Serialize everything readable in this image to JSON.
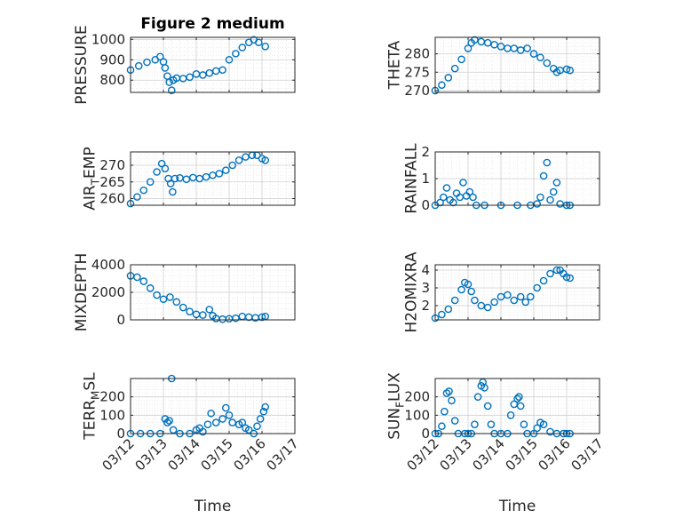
{
  "figure": {
    "title": "Figure 2 medium",
    "marker_color": "#0072BD",
    "axis_color": "#262626",
    "grid_color": "#DFDFDF"
  },
  "chart_data": [
    {
      "type": "scatter",
      "key": "pressure",
      "title": "Figure 2 medium",
      "ylabel_parts": [
        [
          "PRESSURE",
          ""
        ]
      ],
      "xlabel": "",
      "ylim": [
        740,
        1010
      ],
      "yticks": [
        800,
        900,
        1000
      ],
      "xlim": [
        0,
        5
      ],
      "xticks": [
        0,
        1,
        2,
        3,
        4,
        5
      ],
      "xticklabels": [],
      "series": [
        {
          "name": "PRESSURE",
          "points": [
            [
              0,
              850
            ],
            [
              0.25,
              870
            ],
            [
              0.5,
              888
            ],
            [
              0.75,
              900
            ],
            [
              0.9,
              915
            ],
            [
              1.0,
              890
            ],
            [
              1.05,
              860
            ],
            [
              1.12,
              820
            ],
            [
              1.18,
              790
            ],
            [
              1.25,
              750
            ],
            [
              1.3,
              800
            ],
            [
              1.4,
              810
            ],
            [
              1.6,
              808
            ],
            [
              1.8,
              815
            ],
            [
              2.0,
              830
            ],
            [
              2.2,
              825
            ],
            [
              2.4,
              835
            ],
            [
              2.6,
              845
            ],
            [
              2.8,
              850
            ],
            [
              3.0,
              900
            ],
            [
              3.2,
              930
            ],
            [
              3.4,
              960
            ],
            [
              3.6,
              985
            ],
            [
              3.75,
              998
            ],
            [
              3.9,
              985
            ],
            [
              4.1,
              965
            ]
          ]
        }
      ]
    },
    {
      "type": "scatter",
      "key": "theta",
      "ylabel_parts": [
        [
          "THETA",
          ""
        ]
      ],
      "xlabel": "",
      "ylim": [
        269.5,
        284.5
      ],
      "yticks": [
        270,
        275,
        280
      ],
      "xlim": [
        0,
        5
      ],
      "xticks": [
        0,
        1,
        2,
        3,
        4,
        5
      ],
      "xticklabels": [],
      "series": [
        {
          "name": "THETA",
          "points": [
            [
              0,
              270
            ],
            [
              0.2,
              271.5
            ],
            [
              0.4,
              273.5
            ],
            [
              0.6,
              276
            ],
            [
              0.8,
              278.5
            ],
            [
              1.0,
              281.5
            ],
            [
              1.1,
              283
            ],
            [
              1.2,
              283.8
            ],
            [
              1.4,
              283.3
            ],
            [
              1.6,
              283
            ],
            [
              1.8,
              282.5
            ],
            [
              2.0,
              282
            ],
            [
              2.2,
              281.5
            ],
            [
              2.4,
              281.5
            ],
            [
              2.6,
              281
            ],
            [
              2.8,
              281.5
            ],
            [
              3.0,
              280
            ],
            [
              3.2,
              279
            ],
            [
              3.4,
              277.5
            ],
            [
              3.6,
              276
            ],
            [
              3.7,
              275
            ],
            [
              3.8,
              275.5
            ],
            [
              4.0,
              275.8
            ],
            [
              4.1,
              275.5
            ]
          ]
        }
      ]
    },
    {
      "type": "scatter",
      "key": "airtemp",
      "ylabel_parts": [
        [
          "AIR",
          ""
        ],
        [
          "T",
          "sub"
        ],
        [
          "EMP",
          ""
        ]
      ],
      "xlabel": "",
      "ylim": [
        258,
        274
      ],
      "yticks": [
        260,
        265,
        270
      ],
      "xlim": [
        0,
        5
      ],
      "xticks": [
        0,
        1,
        2,
        3,
        4,
        5
      ],
      "xticklabels": [],
      "series": [
        {
          "name": "AIR_TEMP",
          "points": [
            [
              0,
              258.5
            ],
            [
              0.2,
              260.5
            ],
            [
              0.4,
              262.5
            ],
            [
              0.6,
              265
            ],
            [
              0.8,
              268
            ],
            [
              0.95,
              270.5
            ],
            [
              1.05,
              269
            ],
            [
              1.15,
              266
            ],
            [
              1.22,
              264.5
            ],
            [
              1.28,
              262
            ],
            [
              1.35,
              266
            ],
            [
              1.5,
              266.2
            ],
            [
              1.7,
              265.8
            ],
            [
              1.9,
              266.3
            ],
            [
              2.1,
              266
            ],
            [
              2.3,
              266.5
            ],
            [
              2.5,
              267
            ],
            [
              2.7,
              267.5
            ],
            [
              2.9,
              268.5
            ],
            [
              3.1,
              270
            ],
            [
              3.3,
              271.5
            ],
            [
              3.5,
              272.5
            ],
            [
              3.7,
              273
            ],
            [
              3.85,
              273
            ],
            [
              4.0,
              272
            ],
            [
              4.1,
              271.5
            ]
          ]
        }
      ]
    },
    {
      "type": "scatter",
      "key": "rainfall",
      "ylabel_parts": [
        [
          "RAINFALL",
          ""
        ]
      ],
      "xlabel": "",
      "ylim": [
        0,
        2
      ],
      "yticks": [
        0,
        1,
        2
      ],
      "xlim": [
        0,
        5
      ],
      "xticks": [
        0,
        1,
        2,
        3,
        4,
        5
      ],
      "xticklabels": [],
      "series": [
        {
          "name": "RAINFALL",
          "points": [
            [
              0,
              0
            ],
            [
              0.15,
              0.1
            ],
            [
              0.25,
              0.3
            ],
            [
              0.35,
              0.65
            ],
            [
              0.45,
              0.2
            ],
            [
              0.55,
              0.1
            ],
            [
              0.65,
              0.45
            ],
            [
              0.75,
              0.3
            ],
            [
              0.85,
              0.85
            ],
            [
              0.95,
              0.35
            ],
            [
              1.05,
              0.5
            ],
            [
              1.15,
              0.3
            ],
            [
              1.25,
              0
            ],
            [
              1.5,
              0
            ],
            [
              2.0,
              0
            ],
            [
              2.5,
              0
            ],
            [
              2.9,
              0
            ],
            [
              3.1,
              0.05
            ],
            [
              3.2,
              0.3
            ],
            [
              3.3,
              1.1
            ],
            [
              3.4,
              1.6
            ],
            [
              3.5,
              0.2
            ],
            [
              3.6,
              0.5
            ],
            [
              3.7,
              0.85
            ],
            [
              3.8,
              0.05
            ],
            [
              4.0,
              0
            ],
            [
              4.1,
              0
            ]
          ]
        }
      ]
    },
    {
      "type": "scatter",
      "key": "mixdepth",
      "ylabel_parts": [
        [
          "MIXDEPTH",
          ""
        ]
      ],
      "xlabel": "",
      "ylim": [
        0,
        4000
      ],
      "yticks": [
        0,
        2000,
        4000
      ],
      "xlim": [
        0,
        5
      ],
      "xticks": [
        0,
        1,
        2,
        3,
        4,
        5
      ],
      "xticklabels": [],
      "series": [
        {
          "name": "MIXDEPTH",
          "points": [
            [
              0,
              3200
            ],
            [
              0.2,
              3100
            ],
            [
              0.4,
              2800
            ],
            [
              0.6,
              2300
            ],
            [
              0.8,
              1800
            ],
            [
              1.0,
              1500
            ],
            [
              1.2,
              1650
            ],
            [
              1.4,
              1300
            ],
            [
              1.6,
              900
            ],
            [
              1.8,
              600
            ],
            [
              2.0,
              400
            ],
            [
              2.2,
              350
            ],
            [
              2.4,
              750
            ],
            [
              2.5,
              300
            ],
            [
              2.6,
              100
            ],
            [
              2.8,
              50
            ],
            [
              3.0,
              80
            ],
            [
              3.2,
              120
            ],
            [
              3.4,
              250
            ],
            [
              3.6,
              200
            ],
            [
              3.8,
              150
            ],
            [
              4.0,
              200
            ],
            [
              4.1,
              250
            ]
          ]
        }
      ]
    },
    {
      "type": "scatter",
      "key": "h2omixra",
      "ylabel_parts": [
        [
          "H2OMIXRA",
          ""
        ]
      ],
      "xlabel": "",
      "ylim": [
        1.2,
        4.3
      ],
      "yticks": [
        2,
        3,
        4
      ],
      "xlim": [
        0,
        5
      ],
      "xticks": [
        0,
        1,
        2,
        3,
        4,
        5
      ],
      "xticklabels": [],
      "series": [
        {
          "name": "H2OMIXRA",
          "points": [
            [
              0,
              1.3
            ],
            [
              0.2,
              1.5
            ],
            [
              0.4,
              1.8
            ],
            [
              0.6,
              2.3
            ],
            [
              0.8,
              2.9
            ],
            [
              0.9,
              3.3
            ],
            [
              1.0,
              3.2
            ],
            [
              1.1,
              2.8
            ],
            [
              1.2,
              2.3
            ],
            [
              1.4,
              2.0
            ],
            [
              1.6,
              1.9
            ],
            [
              1.8,
              2.2
            ],
            [
              2.0,
              2.5
            ],
            [
              2.2,
              2.6
            ],
            [
              2.4,
              2.3
            ],
            [
              2.6,
              2.5
            ],
            [
              2.75,
              2.2
            ],
            [
              2.9,
              2.5
            ],
            [
              3.1,
              3.0
            ],
            [
              3.3,
              3.4
            ],
            [
              3.5,
              3.8
            ],
            [
              3.7,
              4.0
            ],
            [
              3.8,
              4.0
            ],
            [
              3.9,
              3.8
            ],
            [
              4.0,
              3.6
            ],
            [
              4.1,
              3.55
            ]
          ]
        }
      ]
    },
    {
      "type": "scatter",
      "key": "terrmsl",
      "ylabel_parts": [
        [
          "TERR",
          ""
        ],
        [
          "M",
          "sub"
        ],
        [
          "SL",
          ""
        ]
      ],
      "xlabel": "Time",
      "ylim": [
        0,
        300
      ],
      "yticks": [
        0,
        100,
        200
      ],
      "xlim": [
        0,
        5
      ],
      "xticks": [
        0,
        1,
        2,
        3,
        4,
        5
      ],
      "xticklabels": [
        "03/12",
        "03/13",
        "03/14",
        "03/15",
        "03/16",
        "03/17"
      ],
      "series": [
        {
          "name": "TERR_MSL",
          "points": [
            [
              0,
              0
            ],
            [
              0.3,
              0
            ],
            [
              0.6,
              0
            ],
            [
              0.9,
              0
            ],
            [
              1.05,
              80
            ],
            [
              1.12,
              60
            ],
            [
              1.18,
              70
            ],
            [
              1.25,
              300
            ],
            [
              1.3,
              20
            ],
            [
              1.5,
              0
            ],
            [
              1.8,
              0
            ],
            [
              2.0,
              20
            ],
            [
              2.1,
              30
            ],
            [
              2.2,
              10
            ],
            [
              2.35,
              50
            ],
            [
              2.45,
              110
            ],
            [
              2.6,
              60
            ],
            [
              2.8,
              80
            ],
            [
              2.9,
              140
            ],
            [
              3.0,
              100
            ],
            [
              3.1,
              60
            ],
            [
              3.3,
              50
            ],
            [
              3.4,
              60
            ],
            [
              3.5,
              30
            ],
            [
              3.6,
              20
            ],
            [
              3.75,
              0
            ],
            [
              3.85,
              40
            ],
            [
              3.95,
              80
            ],
            [
              4.05,
              120
            ],
            [
              4.1,
              145
            ]
          ]
        }
      ]
    },
    {
      "type": "scatter",
      "key": "sunflux",
      "ylabel_parts": [
        [
          "SUN",
          ""
        ],
        [
          "F",
          "sub"
        ],
        [
          "LUX",
          ""
        ]
      ],
      "xlabel": "Time",
      "ylim": [
        0,
        300
      ],
      "yticks": [
        0,
        100,
        200
      ],
      "xlim": [
        0,
        5
      ],
      "xticks": [
        0,
        1,
        2,
        3,
        4,
        5
      ],
      "xticklabels": [
        "03/12",
        "03/13",
        "03/14",
        "03/15",
        "03/16",
        "03/17"
      ],
      "series": [
        {
          "name": "SUN_FLUX",
          "points": [
            [
              0,
              0
            ],
            [
              0.1,
              0
            ],
            [
              0.2,
              40
            ],
            [
              0.28,
              120
            ],
            [
              0.35,
              220
            ],
            [
              0.42,
              230
            ],
            [
              0.5,
              180
            ],
            [
              0.6,
              70
            ],
            [
              0.7,
              0
            ],
            [
              0.9,
              0
            ],
            [
              1.0,
              0
            ],
            [
              1.1,
              0
            ],
            [
              1.2,
              50
            ],
            [
              1.3,
              200
            ],
            [
              1.4,
              260
            ],
            [
              1.45,
              280
            ],
            [
              1.5,
              250
            ],
            [
              1.6,
              150
            ],
            [
              1.7,
              50
            ],
            [
              1.8,
              0
            ],
            [
              2.0,
              0
            ],
            [
              2.2,
              0
            ],
            [
              2.3,
              100
            ],
            [
              2.4,
              160
            ],
            [
              2.5,
              190
            ],
            [
              2.55,
              200
            ],
            [
              2.6,
              150
            ],
            [
              2.7,
              50
            ],
            [
              2.8,
              0
            ],
            [
              3.0,
              0
            ],
            [
              3.1,
              30
            ],
            [
              3.2,
              60
            ],
            [
              3.3,
              50
            ],
            [
              3.5,
              10
            ],
            [
              3.7,
              0
            ],
            [
              3.9,
              0
            ],
            [
              4.0,
              0
            ],
            [
              4.1,
              0
            ]
          ]
        }
      ]
    }
  ]
}
